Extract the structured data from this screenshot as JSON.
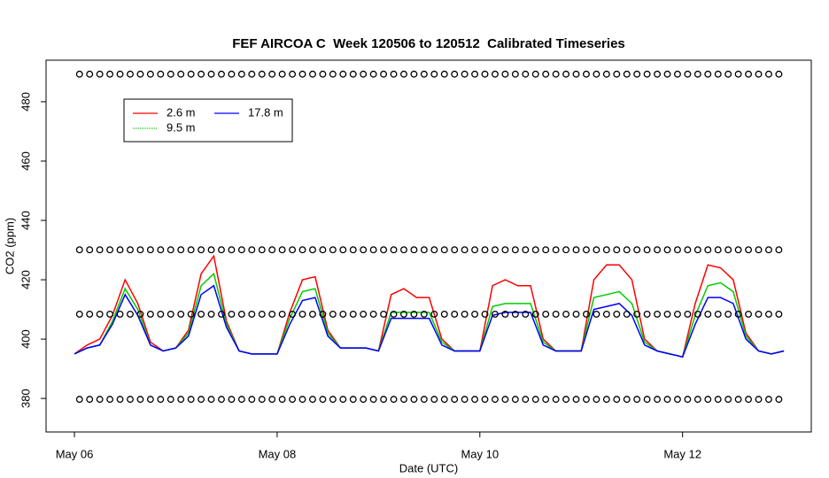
{
  "chart_data": {
    "type": "line",
    "title": "FEF AIRCOA C  Week 120506 to 120512  Calibrated Timeseries",
    "x_label": "Date (UTC)",
    "y_label": "CO2 (ppm)",
    "xlim": [
      -0.28,
      7.27
    ],
    "ylim": [
      368.7,
      494
    ],
    "xticks": [
      {
        "value": 0,
        "label": "May 06"
      },
      {
        "value": 2,
        "label": "May 08"
      },
      {
        "value": 4,
        "label": "May 10"
      },
      {
        "value": 6,
        "label": "May 12"
      }
    ],
    "yticks": [
      380,
      400,
      420,
      440,
      460,
      480
    ],
    "x": [
      0,
      0.125,
      0.25,
      0.375,
      0.5,
      0.625,
      0.75,
      0.875,
      1,
      1.125,
      1.25,
      1.375,
      1.5,
      1.625,
      1.75,
      1.875,
      2,
      2.125,
      2.25,
      2.375,
      2.5,
      2.625,
      2.75,
      2.875,
      3,
      3.125,
      3.25,
      3.375,
      3.5,
      3.625,
      3.75,
      3.875,
      4,
      4.125,
      4.25,
      4.375,
      4.5,
      4.625,
      4.75,
      4.875,
      5,
      5.125,
      5.25,
      5.375,
      5.5,
      5.625,
      5.75,
      5.875,
      6,
      6.125,
      6.25,
      6.375,
      6.5,
      6.625,
      6.75,
      6.875,
      7
    ],
    "series": [
      {
        "name": "2.6 m",
        "color": "#ff0000",
        "values": [
          395,
          398,
          400,
          408,
          420,
          412,
          399,
          396,
          397,
          403,
          422,
          428,
          406,
          396,
          395,
          395,
          395,
          409,
          420,
          421,
          403,
          397,
          397,
          397,
          396,
          415,
          417,
          414,
          414,
          400,
          396,
          396,
          396,
          418,
          420,
          418,
          418,
          400,
          396,
          396,
          396,
          420,
          425,
          425,
          420,
          400,
          396,
          395,
          394,
          412,
          425,
          424,
          420,
          402,
          396,
          395,
          396
        ]
      },
      {
        "name": "9.5 m",
        "color": "#00cc00",
        "values": [
          395,
          397,
          398,
          406,
          417,
          410,
          398,
          396,
          397,
          402,
          418,
          422,
          405,
          396,
          395,
          395,
          395,
          407,
          416,
          417,
          402,
          397,
          397,
          397,
          396,
          409,
          409,
          409,
          409,
          399,
          396,
          396,
          396,
          411,
          412,
          412,
          412,
          399,
          396,
          396,
          396,
          414,
          415,
          416,
          412,
          399,
          396,
          395,
          394,
          408,
          418,
          419,
          416,
          401,
          396,
          395,
          396
        ]
      },
      {
        "name": "17.8 m",
        "color": "#0000ff",
        "values": [
          395,
          397,
          398,
          405,
          415,
          408,
          398,
          396,
          397,
          401,
          415,
          418,
          404,
          396,
          395,
          395,
          395,
          405,
          413,
          414,
          401,
          397,
          397,
          397,
          396,
          407,
          407,
          407,
          407,
          398,
          396,
          396,
          396,
          408,
          409,
          409,
          409,
          398,
          396,
          396,
          396,
          410,
          411,
          412,
          408,
          398,
          396,
          395,
          394,
          405,
          414,
          414,
          412,
          400,
          396,
          395,
          396
        ]
      }
    ],
    "point_x": [
      0.05,
      0.15,
      0.25,
      0.35,
      0.45,
      0.55,
      0.65,
      0.75,
      0.85,
      0.95,
      1.05,
      1.15,
      1.25,
      1.35,
      1.45,
      1.55,
      1.65,
      1.75,
      1.85,
      1.95,
      2.05,
      2.15,
      2.25,
      2.35,
      2.45,
      2.55,
      2.65,
      2.75,
      2.85,
      2.95,
      3.05,
      3.15,
      3.25,
      3.35,
      3.45,
      3.55,
      3.65,
      3.75,
      3.85,
      3.95,
      4.05,
      4.15,
      4.25,
      4.35,
      4.45,
      4.55,
      4.65,
      4.75,
      4.85,
      4.95,
      5.05,
      5.15,
      5.25,
      5.35,
      5.45,
      5.55,
      5.65,
      5.75,
      5.85,
      5.95,
      6.05,
      6.15,
      6.25,
      6.35,
      6.45,
      6.55,
      6.65,
      6.75,
      6.85,
      6.95
    ],
    "point_rows": [
      {
        "level": 489.3
      },
      {
        "level": 430.1
      },
      {
        "level": 408.4
      },
      {
        "level": 379.7
      }
    ],
    "legend": "top-left"
  }
}
